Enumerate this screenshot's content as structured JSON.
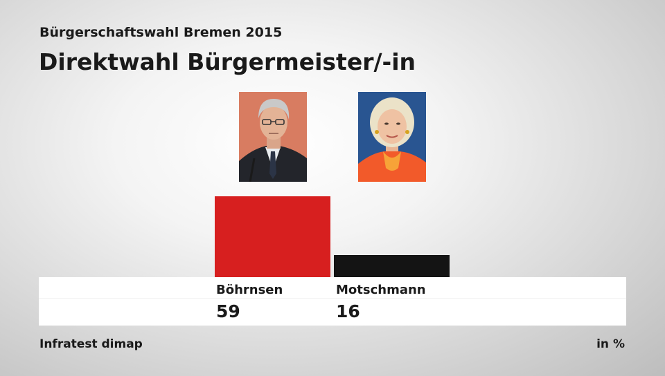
{
  "header": {
    "subtitle": "Bürgerschaftswahl Bremen 2015",
    "title": "Direktwahl Bürgermeister/-in"
  },
  "chart_data": {
    "type": "bar",
    "title": "Direktwahl Bürgermeister/-in",
    "subtitle": "Bürgerschaftswahl Bremen 2015",
    "categories": [
      "Böhrnsen",
      "Motschmann"
    ],
    "values": [
      59,
      16
    ],
    "colors": [
      "#d71f1f",
      "#141414"
    ],
    "unit": "in %",
    "ylim": [
      0,
      59
    ],
    "grid": false
  },
  "candidates": [
    {
      "name": "Böhrnsen",
      "value": "59",
      "color": "#d71f1f",
      "photo": "portrait-boehrnsen"
    },
    {
      "name": "Motschmann",
      "value": "16",
      "color": "#141414",
      "photo": "portrait-motschmann"
    }
  ],
  "footer": {
    "source": "Infratest dimap",
    "unit": "in %"
  }
}
